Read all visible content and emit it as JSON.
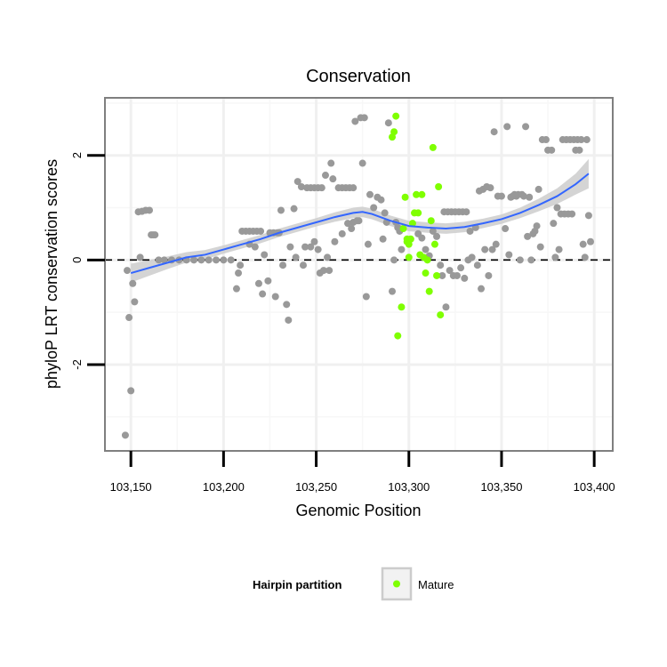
{
  "chart_data": {
    "type": "scatter",
    "title": "Conservation",
    "xlabel": "Genomic Position",
    "ylabel": "phyloP LRT conservation scores",
    "xlim": [
      103136,
      103410
    ],
    "ylim": [
      -3.65,
      3.1
    ],
    "x_ticks": [
      {
        "value": 103150,
        "label": "103,150"
      },
      {
        "value": 103200,
        "label": "103,200"
      },
      {
        "value": 103250,
        "label": "103,250"
      },
      {
        "value": 103300,
        "label": "103,300"
      },
      {
        "value": 103350,
        "label": "103,350"
      },
      {
        "value": 103400,
        "label": "103,400"
      }
    ],
    "y_ticks": [
      {
        "value": -2,
        "label": "-2"
      },
      {
        "value": 0,
        "label": "0"
      },
      {
        "value": 2,
        "label": "2"
      }
    ],
    "reference_line": {
      "y": 0,
      "style": "dashed",
      "color": "#000000"
    },
    "legend": {
      "title": "Hairpin partition",
      "entries": [
        {
          "name": "Mature",
          "color": "#7fff00"
        }
      ],
      "placement": "bottom"
    },
    "series": [
      {
        "name": "Hairpin",
        "color": "#999999",
        "points": [
          [
            103147,
            -3.35
          ],
          [
            103149,
            -1.1
          ],
          [
            103150,
            -2.5
          ],
          [
            103151,
            -0.45
          ],
          [
            103152,
            -0.8
          ],
          [
            103148,
            -0.2
          ],
          [
            103154,
            0.92
          ],
          [
            103156,
            0.93
          ],
          [
            103158,
            0.95
          ],
          [
            103160,
            0.95
          ],
          [
            103155,
            0.05
          ],
          [
            103161,
            0.48
          ],
          [
            103162,
            0.48
          ],
          [
            103163,
            0.48
          ],
          [
            103165,
            0.0
          ],
          [
            103168,
            0.0
          ],
          [
            103172,
            0.0
          ],
          [
            103176,
            0.0
          ],
          [
            103180,
            0.0
          ],
          [
            103184,
            0.0
          ],
          [
            103188,
            0.0
          ],
          [
            103192,
            0.0
          ],
          [
            103196,
            0.0
          ],
          [
            103200,
            0.0
          ],
          [
            103204,
            0.0
          ],
          [
            103207,
            -0.55
          ],
          [
            103208,
            -0.25
          ],
          [
            103209,
            -0.1
          ],
          [
            103210,
            0.55
          ],
          [
            103212,
            0.55
          ],
          [
            103214,
            0.55
          ],
          [
            103216,
            0.55
          ],
          [
            103218,
            0.55
          ],
          [
            103220,
            0.55
          ],
          [
            103214,
            0.3
          ],
          [
            103217,
            0.25
          ],
          [
            103219,
            -0.45
          ],
          [
            103221,
            -0.65
          ],
          [
            103222,
            0.1
          ],
          [
            103224,
            -0.4
          ],
          [
            103225,
            0.52
          ],
          [
            103227,
            0.52
          ],
          [
            103229,
            0.52
          ],
          [
            103230,
            0.52
          ],
          [
            103228,
            -0.7
          ],
          [
            103231,
            0.95
          ],
          [
            103232,
            -0.1
          ],
          [
            103234,
            -0.85
          ],
          [
            103235,
            -1.15
          ],
          [
            103236,
            0.25
          ],
          [
            103238,
            0.98
          ],
          [
            103239,
            0.05
          ],
          [
            103240,
            1.5
          ],
          [
            103242,
            1.4
          ],
          [
            103243,
            -0.1
          ],
          [
            103244,
            0.25
          ],
          [
            103245,
            1.38
          ],
          [
            103247,
            1.38
          ],
          [
            103249,
            1.38
          ],
          [
            103251,
            1.38
          ],
          [
            103253,
            1.38
          ],
          [
            103247,
            0.25
          ],
          [
            103249,
            0.35
          ],
          [
            103251,
            0.2
          ],
          [
            103252,
            -0.25
          ],
          [
            103254,
            -0.2
          ],
          [
            103255,
            1.62
          ],
          [
            103256,
            0.05
          ],
          [
            103257,
            -0.2
          ],
          [
            103258,
            1.85
          ],
          [
            103259,
            1.55
          ],
          [
            103260,
            0.35
          ],
          [
            103262,
            1.38
          ],
          [
            103264,
            1.38
          ],
          [
            103266,
            1.38
          ],
          [
            103268,
            1.38
          ],
          [
            103270,
            1.38
          ],
          [
            103264,
            0.5
          ],
          [
            103267,
            0.7
          ],
          [
            103269,
            0.6
          ],
          [
            103270,
            0.72
          ],
          [
            103271,
            2.65
          ],
          [
            103272,
            0.75
          ],
          [
            103273,
            0.75
          ],
          [
            103274,
            2.72
          ],
          [
            103275,
            1.85
          ],
          [
            103276,
            2.72
          ],
          [
            103277,
            -0.7
          ],
          [
            103278,
            0.3
          ],
          [
            103279,
            1.25
          ],
          [
            103281,
            1.0
          ],
          [
            103283,
            1.2
          ],
          [
            103285,
            1.15
          ],
          [
            103286,
            0.4
          ],
          [
            103287,
            0.9
          ],
          [
            103288,
            0.72
          ],
          [
            103289,
            2.62
          ],
          [
            103291,
            -0.6
          ],
          [
            103292,
            0.0
          ],
          [
            103293,
            0.72
          ],
          [
            103294,
            0.62
          ],
          [
            103295,
            0.55
          ],
          [
            103296,
            0.2
          ],
          [
            103305,
            0.5
          ],
          [
            103307,
            0.42
          ],
          [
            103309,
            0.2
          ],
          [
            103311,
            0.08
          ],
          [
            103313,
            0.55
          ],
          [
            103315,
            0.45
          ],
          [
            103317,
            -0.1
          ],
          [
            103318,
            -0.3
          ],
          [
            103319,
            0.92
          ],
          [
            103321,
            0.92
          ],
          [
            103323,
            0.92
          ],
          [
            103325,
            0.92
          ],
          [
            103327,
            0.92
          ],
          [
            103329,
            0.92
          ],
          [
            103331,
            0.92
          ],
          [
            103320,
            -0.9
          ],
          [
            103322,
            -0.2
          ],
          [
            103324,
            -0.3
          ],
          [
            103326,
            -0.3
          ],
          [
            103328,
            -0.15
          ],
          [
            103330,
            -0.35
          ],
          [
            103332,
            0.0
          ],
          [
            103333,
            0.55
          ],
          [
            103334,
            0.05
          ],
          [
            103336,
            0.62
          ],
          [
            103337,
            -0.1
          ],
          [
            103338,
            1.32
          ],
          [
            103339,
            -0.55
          ],
          [
            103340,
            1.35
          ],
          [
            103341,
            0.2
          ],
          [
            103342,
            1.4
          ],
          [
            103343,
            -0.3
          ],
          [
            103344,
            1.38
          ],
          [
            103345,
            0.2
          ],
          [
            103346,
            2.45
          ],
          [
            103347,
            0.3
          ],
          [
            103348,
            1.22
          ],
          [
            103350,
            1.22
          ],
          [
            103352,
            0.6
          ],
          [
            103353,
            2.55
          ],
          [
            103354,
            0.1
          ],
          [
            103355,
            1.2
          ],
          [
            103356,
            1.22
          ],
          [
            103357,
            1.25
          ],
          [
            103358,
            1.22
          ],
          [
            103359,
            1.25
          ],
          [
            103360,
            0.0
          ],
          [
            103361,
            1.25
          ],
          [
            103362,
            1.22
          ],
          [
            103363,
            2.55
          ],
          [
            103364,
            0.45
          ],
          [
            103365,
            1.2
          ],
          [
            103366,
            0.0
          ],
          [
            103367,
            0.5
          ],
          [
            103368,
            0.55
          ],
          [
            103369,
            0.65
          ],
          [
            103370,
            1.35
          ],
          [
            103371,
            0.25
          ],
          [
            103372,
            2.3
          ],
          [
            103374,
            2.3
          ],
          [
            103375,
            2.1
          ],
          [
            103377,
            2.1
          ],
          [
            103378,
            0.7
          ],
          [
            103379,
            0.05
          ],
          [
            103380,
            1.0
          ],
          [
            103381,
            0.2
          ],
          [
            103382,
            0.88
          ],
          [
            103384,
            0.88
          ],
          [
            103386,
            0.88
          ],
          [
            103388,
            0.88
          ],
          [
            103383,
            2.3
          ],
          [
            103385,
            2.3
          ],
          [
            103387,
            2.3
          ],
          [
            103389,
            2.3
          ],
          [
            103390,
            2.1
          ],
          [
            103391,
            2.3
          ],
          [
            103392,
            2.1
          ],
          [
            103393,
            2.3
          ],
          [
            103394,
            0.3
          ],
          [
            103395,
            0.05
          ],
          [
            103396,
            2.3
          ],
          [
            103397,
            0.85
          ],
          [
            103398,
            0.35
          ]
        ]
      },
      {
        "name": "Mature",
        "color": "#7fff00",
        "points": [
          [
            103291,
            2.35
          ],
          [
            103292,
            2.45
          ],
          [
            103293,
            2.75
          ],
          [
            103294,
            -1.45
          ],
          [
            103296,
            -0.9
          ],
          [
            103297,
            0.6
          ],
          [
            103298,
            1.2
          ],
          [
            103299,
            0.35
          ],
          [
            103299,
            0.4
          ],
          [
            103300,
            0.3
          ],
          [
            103300,
            0.05
          ],
          [
            103301,
            0.4
          ],
          [
            103302,
            0.7
          ],
          [
            103303,
            0.9
          ],
          [
            103304,
            1.25
          ],
          [
            103305,
            0.9
          ],
          [
            103306,
            0.1
          ],
          [
            103307,
            1.25
          ],
          [
            103308,
            0.05
          ],
          [
            103309,
            -0.25
          ],
          [
            103310,
            0.0
          ],
          [
            103311,
            -0.6
          ],
          [
            103312,
            0.75
          ],
          [
            103313,
            2.15
          ],
          [
            103314,
            0.3
          ],
          [
            103315,
            -0.3
          ],
          [
            103316,
            1.4
          ],
          [
            103317,
            -1.05
          ]
        ]
      }
    ],
    "smooth_fit": {
      "color": "#3366ff",
      "band_color": "#cccccc",
      "x": [
        103150,
        103160,
        103170,
        103180,
        103190,
        103200,
        103210,
        103220,
        103230,
        103240,
        103250,
        103260,
        103270,
        103275,
        103280,
        103290,
        103300,
        103310,
        103320,
        103330,
        103340,
        103350,
        103360,
        103370,
        103380,
        103390,
        103397
      ],
      "y": [
        -0.25,
        -0.15,
        -0.05,
        0.05,
        0.1,
        0.2,
        0.3,
        0.4,
        0.52,
        0.62,
        0.72,
        0.82,
        0.9,
        0.92,
        0.88,
        0.75,
        0.65,
        0.62,
        0.6,
        0.63,
        0.7,
        0.78,
        0.9,
        1.05,
        1.22,
        1.45,
        1.65
      ],
      "ci_halfwidth": [
        0.18,
        0.15,
        0.12,
        0.1,
        0.09,
        0.08,
        0.08,
        0.08,
        0.08,
        0.08,
        0.08,
        0.09,
        0.1,
        0.1,
        0.1,
        0.1,
        0.1,
        0.1,
        0.1,
        0.1,
        0.09,
        0.09,
        0.1,
        0.12,
        0.15,
        0.2,
        0.28
      ]
    }
  }
}
